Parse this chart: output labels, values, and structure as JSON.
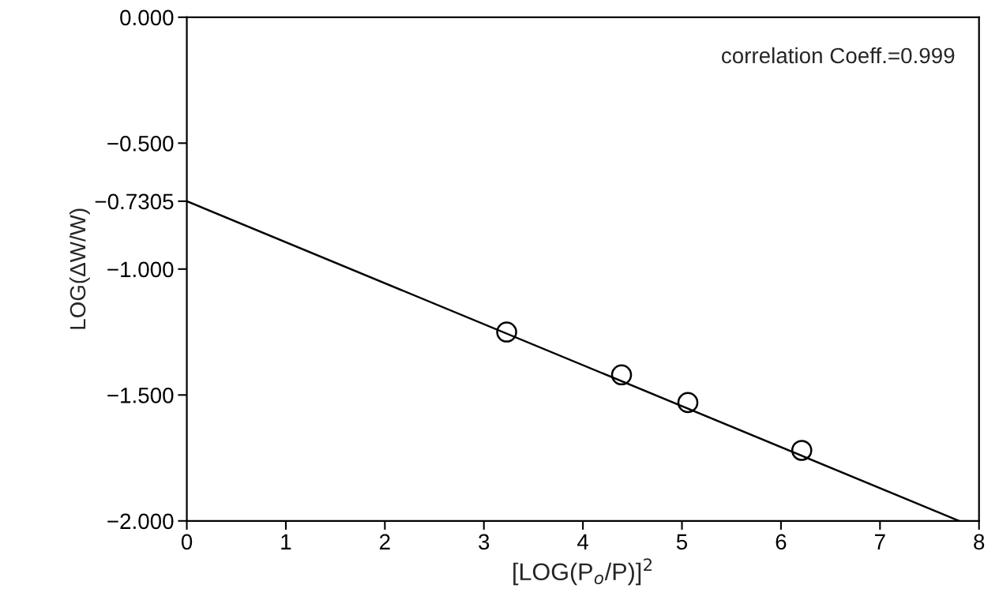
{
  "chart_data": {
    "type": "scatter",
    "xlabel": "[LOG(P$_{o}$/P)]$^{2}$",
    "ylabel": "LOG(ΔW/W)",
    "annotations": [
      "correlation Coeff.=0.999"
    ],
    "series": [
      {
        "color": "#000000",
        "marker": "circle",
        "x": [
          3.23,
          4.39,
          5.06,
          6.21
        ],
        "values": [
          -1.25,
          -1.42,
          -1.53,
          -1.72
        ]
      },
      {
        "type": "line",
        "color": "#000000",
        "x": [
          0,
          7.8
        ],
        "values": [
          -0.7305,
          -2.0
        ]
      }
    ],
    "xlim": [
      0,
      8
    ],
    "xticks": [
      0,
      1,
      2,
      3,
      4,
      5,
      6,
      7,
      8
    ],
    "ylim": [
      -2.0,
      0.0
    ],
    "yticks": [
      {
        "value": 0.0,
        "label": "0.000"
      },
      {
        "value": -0.5,
        "label": "−0.500"
      },
      {
        "value": -0.7305,
        "label": "−0.7305"
      },
      {
        "value": -1.0,
        "label": "−1.000"
      },
      {
        "value": -1.5,
        "label": "−1.500"
      },
      {
        "value": -2.0,
        "label": "−2.000"
      }
    ],
    "grid": false,
    "legend": false
  }
}
